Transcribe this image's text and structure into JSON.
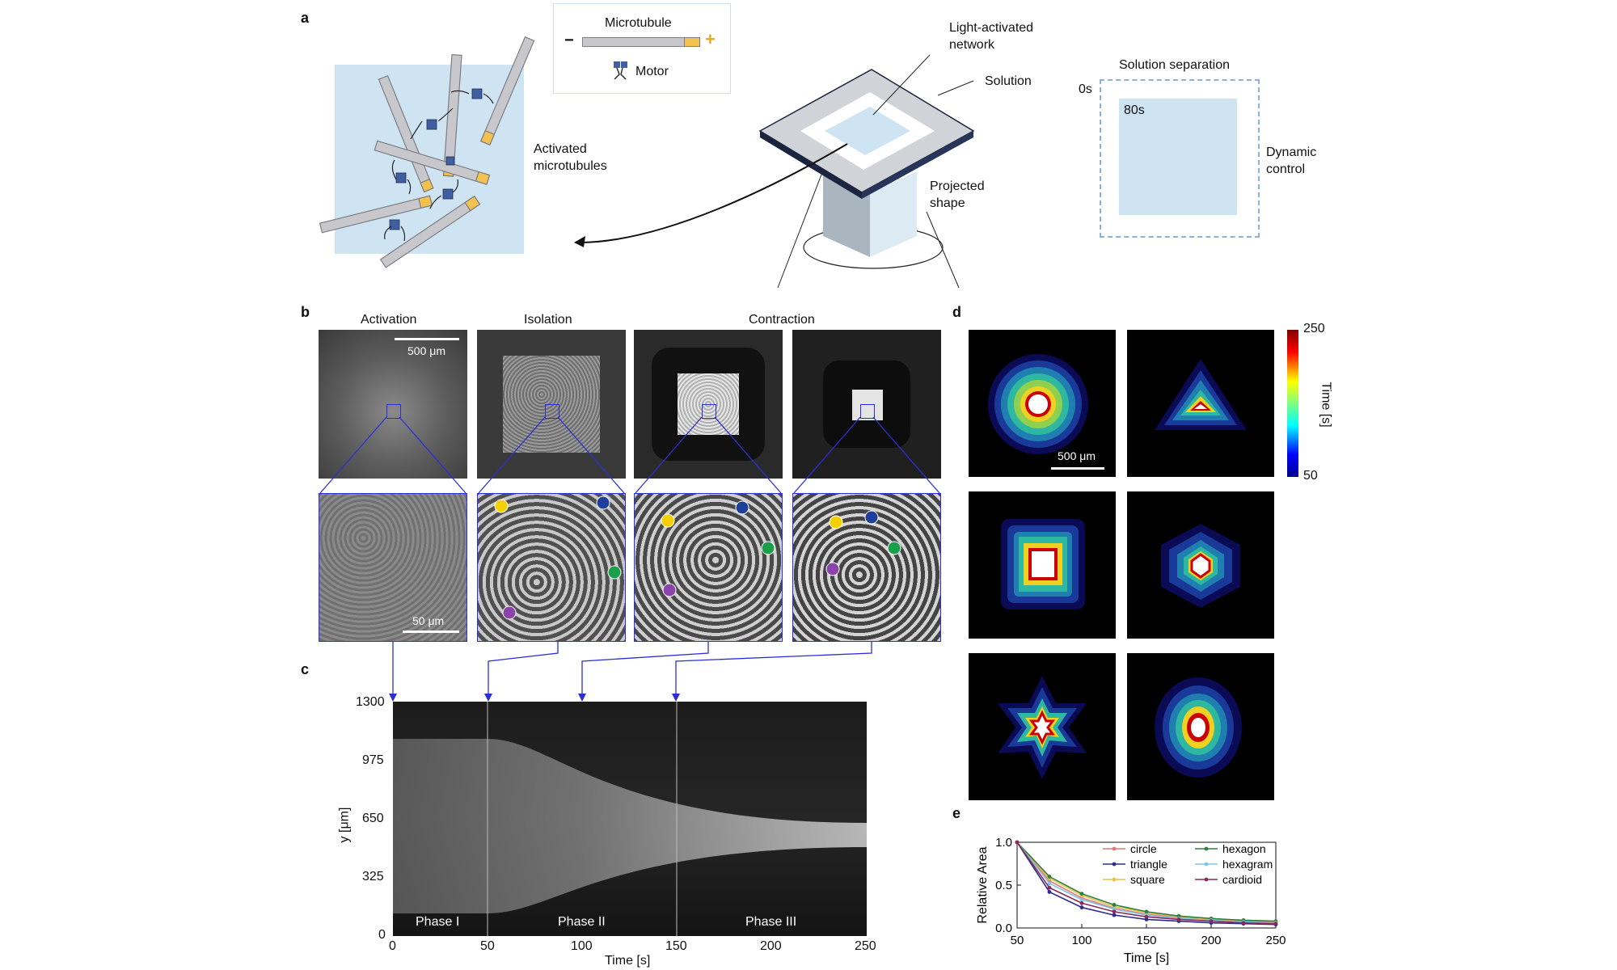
{
  "panel_labels": {
    "a": "a",
    "b": "b",
    "c": "c",
    "d": "d",
    "e": "e"
  },
  "panel_a": {
    "legend_microtubule": "Microtubule",
    "legend_minus": "−",
    "legend_plus": "+",
    "legend_motor": "Motor",
    "activated_microtubules": "Activated\nmicrotubules",
    "light_activated_network": "Light-activated\nnetwork",
    "solution": "Solution",
    "projected_shape": "Projected\nshape",
    "solution_separation": "Solution separation",
    "time_0s": "0s",
    "time_80s": "80s",
    "dynamic_control": "Dynamic\ncontrol",
    "colors": {
      "light_blue": "#cfe4f3",
      "tube_gray": "#c8c8cc",
      "tube_end": "#f2c14e",
      "motor_blue": "#3f5fa0",
      "dash_blue": "#8fb0d6"
    }
  },
  "panel_b": {
    "titles": [
      "Activation",
      "Isolation",
      "Contraction"
    ],
    "scale_top": "500 μm",
    "scale_bottom": "50 μm",
    "dot_colors": [
      "#f5d000",
      "#1f3f9c",
      "#1aa04a",
      "#8b44ad"
    ]
  },
  "panel_c": {
    "xlabel": "Time [s]",
    "ylabel": "y [μm]",
    "xticks": [
      "0",
      "50",
      "100",
      "150",
      "200",
      "250"
    ],
    "yticks": [
      "0",
      "325",
      "650",
      "975",
      "1300"
    ],
    "phases": [
      "Phase I",
      "Phase II",
      "Phase III"
    ],
    "markers_s": [
      0,
      50,
      100,
      150
    ]
  },
  "panel_d": {
    "scale": "500 μm",
    "colorbar_label": "Time [s]",
    "colorbar_max": "250",
    "colorbar_min": "50",
    "shapes": [
      "circle",
      "triangle",
      "square",
      "hexagon",
      "hexagram",
      "cardioid"
    ]
  },
  "chart_data": {
    "type": "line",
    "title": "",
    "xlabel": "Time [s]",
    "ylabel": "Relative Area",
    "xlim": [
      50,
      250
    ],
    "ylim": [
      0,
      1.0
    ],
    "xticks": [
      "50",
      "100",
      "150",
      "200",
      "250"
    ],
    "yticks": [
      "0.0",
      "0.5",
      "1.0"
    ],
    "legend_position": "top-right",
    "x": [
      50,
      75,
      100,
      125,
      150,
      175,
      200,
      225,
      250
    ],
    "series": [
      {
        "name": "circle",
        "color": "#e0787a",
        "values": [
          1.0,
          0.55,
          0.35,
          0.23,
          0.16,
          0.12,
          0.1,
          0.08,
          0.07
        ]
      },
      {
        "name": "triangle",
        "color": "#2d2d8a",
        "values": [
          1.0,
          0.42,
          0.24,
          0.15,
          0.1,
          0.08,
          0.06,
          0.05,
          0.04
        ]
      },
      {
        "name": "square",
        "color": "#e8c24a",
        "values": [
          1.0,
          0.58,
          0.38,
          0.25,
          0.18,
          0.13,
          0.1,
          0.09,
          0.08
        ]
      },
      {
        "name": "hexagon",
        "color": "#2f7f3f",
        "values": [
          1.0,
          0.6,
          0.4,
          0.27,
          0.19,
          0.14,
          0.11,
          0.09,
          0.08
        ]
      },
      {
        "name": "hexagram",
        "color": "#7fc6e6",
        "values": [
          1.0,
          0.52,
          0.33,
          0.22,
          0.15,
          0.11,
          0.09,
          0.07,
          0.06
        ]
      },
      {
        "name": "cardioid",
        "color": "#8a2a5a",
        "values": [
          1.0,
          0.47,
          0.29,
          0.19,
          0.13,
          0.1,
          0.08,
          0.06,
          0.05
        ]
      }
    ]
  }
}
